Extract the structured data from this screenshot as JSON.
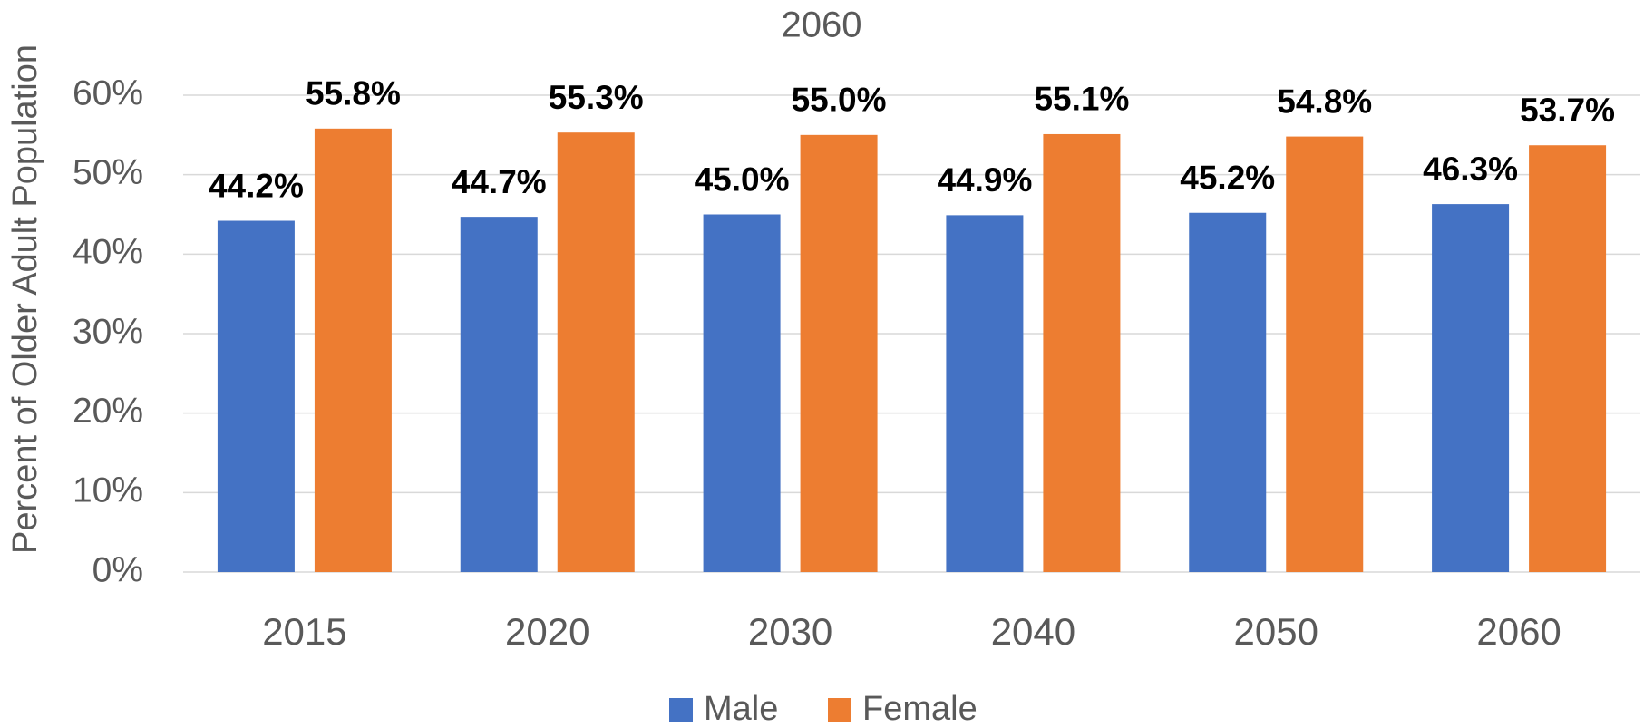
{
  "chart_data": {
    "type": "bar",
    "title": "2060",
    "y_axis_label": "Percent of Older Adult Population",
    "categories": [
      "2015",
      "2020",
      "2030",
      "2040",
      "2050",
      "2060"
    ],
    "series": [
      {
        "name": "Male",
        "color": "#4472c4",
        "values": [
          44.2,
          44.7,
          45.0,
          44.9,
          45.2,
          46.3
        ],
        "value_labels": [
          "44.2%",
          "44.7%",
          "45.0%",
          "44.9%",
          "45.2%",
          "46.3%"
        ]
      },
      {
        "name": "Female",
        "color": "#ed7d31",
        "values": [
          55.8,
          55.3,
          55.0,
          55.1,
          54.8,
          53.7
        ],
        "value_labels": [
          "55.8%",
          "55.3%",
          "55.0%",
          "55.1%",
          "54.8%",
          "53.7%"
        ]
      }
    ],
    "ylim": [
      0,
      60
    ],
    "yticks": [
      {
        "value": 0,
        "label": "0%"
      },
      {
        "value": 10,
        "label": "10%"
      },
      {
        "value": 20,
        "label": "20%"
      },
      {
        "value": 30,
        "label": "30%"
      },
      {
        "value": 40,
        "label": "40%"
      },
      {
        "value": 50,
        "label": "50%"
      },
      {
        "value": 60,
        "label": "60%"
      }
    ],
    "grid": true,
    "legend": "bottom"
  }
}
